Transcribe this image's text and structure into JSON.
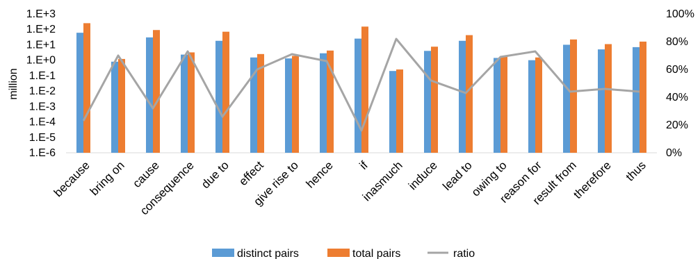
{
  "chart_data": {
    "type": "bar",
    "title": "",
    "ylabel": "million",
    "y2label": "",
    "yscale": "log",
    "ylim": [
      1e-06,
      1000
    ],
    "yticks": [
      "1.E-6",
      "1.E-5",
      "1.E-4",
      "1.E-3",
      "1.E-2",
      "1.E-1",
      "1.E+0",
      "1.E+1",
      "1.E+2",
      "1.E+3"
    ],
    "y2lim": [
      0,
      100
    ],
    "y2ticks": [
      "0%",
      "20%",
      "40%",
      "60%",
      "80%",
      "100%"
    ],
    "grid": false,
    "legend_position": "bottom",
    "categories": [
      "because",
      "bring on",
      "cause",
      "consequence",
      "due to",
      "effect",
      "give rise to",
      "hence",
      "if",
      "inasmuch",
      "induce",
      "lead to",
      "owing to",
      "reason for",
      "result from",
      "therefore",
      "thus"
    ],
    "series": [
      {
        "name": "distinct pairs",
        "type": "bar",
        "axis": "left",
        "color": "#5B9BD5",
        "values": [
          60,
          0.8,
          30,
          2.3,
          18,
          1.5,
          1.3,
          2.8,
          25,
          0.2,
          4,
          18,
          1.4,
          1.0,
          10,
          5,
          7
        ]
      },
      {
        "name": "total pairs",
        "type": "bar",
        "axis": "left",
        "color": "#ED7D31",
        "values": [
          250,
          1.2,
          90,
          3.2,
          70,
          2.5,
          1.9,
          4.2,
          150,
          0.25,
          7.5,
          42,
          1.9,
          1.5,
          22,
          11,
          16
        ]
      },
      {
        "name": "ratio",
        "type": "line",
        "axis": "right",
        "color": "#A5A5A5",
        "values": [
          23,
          70,
          32,
          73,
          26,
          60,
          71,
          66,
          16,
          82,
          52,
          43,
          69,
          73,
          44,
          46,
          44
        ]
      }
    ]
  }
}
